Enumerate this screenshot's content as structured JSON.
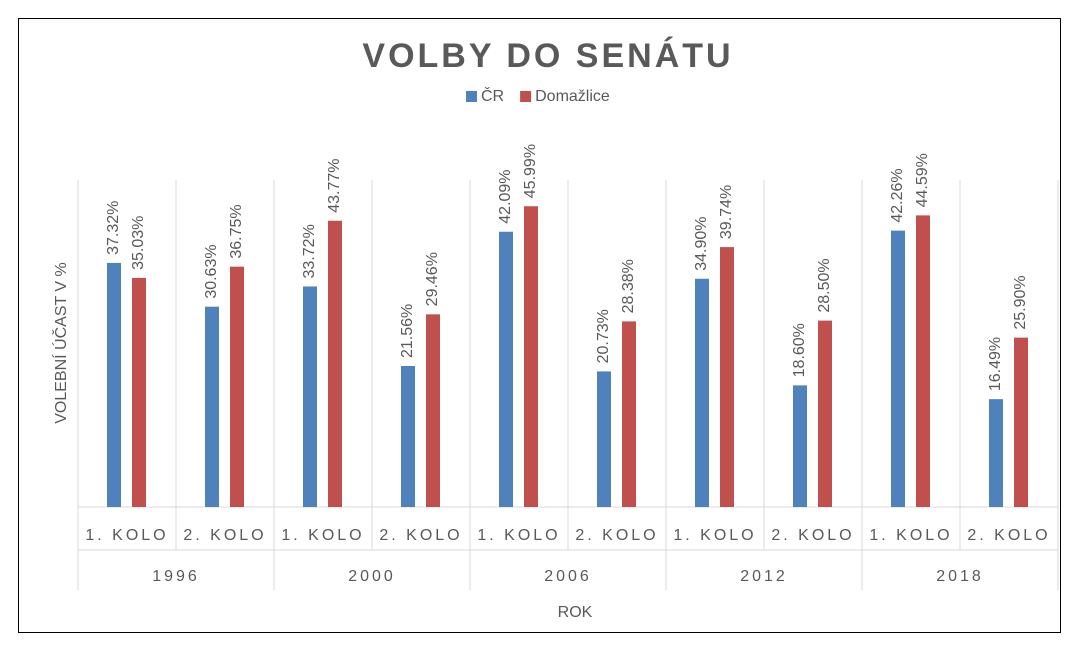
{
  "chart_data": {
    "type": "bar",
    "title": "VOLBY DO SENÁTU",
    "x_label": "ROK",
    "y_label": "VOLEBNÍ ÚČAST V %",
    "categories": [
      "1. KOLO",
      "2. KOLO",
      "1. KOLO",
      "2. KOLO",
      "1. KOLO",
      "2. KOLO",
      "1. KOLO",
      "2. KOLO",
      "1. KOLO",
      "2. KOLO"
    ],
    "category_groups": [
      "1996",
      "2000",
      "2006",
      "2012",
      "2018"
    ],
    "series": [
      {
        "name": "ČR",
        "color": "#4f81bd",
        "values": [
          37.32,
          30.63,
          33.72,
          21.56,
          42.09,
          20.73,
          34.9,
          18.6,
          42.26,
          16.49
        ],
        "value_labels": [
          "37.32%",
          "30.63%",
          "33.72%",
          "21.56%",
          "42.09%",
          "20.73%",
          "34.90%",
          "18.60%",
          "42.26%",
          "16.49%"
        ]
      },
      {
        "name": "Domažlice",
        "color": "#c0504d",
        "values": [
          35.03,
          36.75,
          43.77,
          29.46,
          45.99,
          28.38,
          39.74,
          28.5,
          44.59,
          25.9
        ],
        "value_labels": [
          "35.03%",
          "36.75%",
          "43.77%",
          "29.46%",
          "45.99%",
          "28.38%",
          "39.74%",
          "28.50%",
          "44.59%",
          "25.90%"
        ]
      }
    ],
    "ylim": [
      0,
      50
    ]
  }
}
